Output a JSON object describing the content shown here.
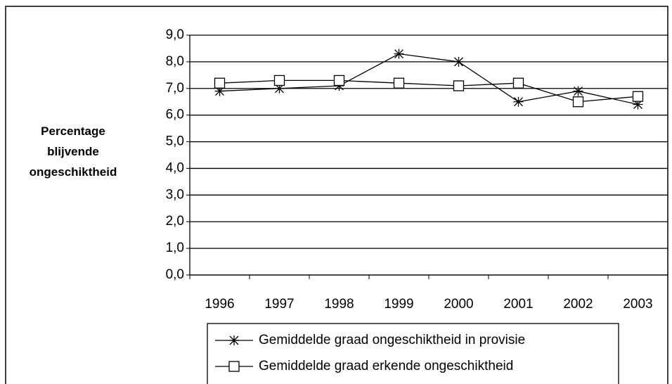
{
  "chart_data": {
    "type": "line",
    "ylabel": "Percentage blijvende ongeschiktheid",
    "categories": [
      "1996",
      "1997",
      "1998",
      "1999",
      "2000",
      "2001",
      "2002",
      "2003"
    ],
    "series": [
      {
        "name": "Gemiddelde graad ongeschiktheid in provisie",
        "color": "#000000",
        "marker": "star",
        "values": [
          6.9,
          7.0,
          7.1,
          8.3,
          8.0,
          6.5,
          6.9,
          6.4
        ]
      },
      {
        "name": "Gemiddelde graad erkende ongeschiktheid",
        "color": "#000000",
        "marker": "square",
        "values": [
          7.2,
          7.3,
          7.3,
          7.2,
          7.1,
          7.2,
          6.5,
          6.7
        ]
      }
    ],
    "ylim": [
      0,
      9
    ],
    "yticks": [
      {
        "value": 0,
        "label": "0,0"
      },
      {
        "value": 1,
        "label": "1,0"
      },
      {
        "value": 2,
        "label": "2,0"
      },
      {
        "value": 3,
        "label": "3,0"
      },
      {
        "value": 4,
        "label": "4,0"
      },
      {
        "value": 5,
        "label": "5,0"
      },
      {
        "value": 6,
        "label": "6,0"
      },
      {
        "value": 7,
        "label": "7,0"
      },
      {
        "value": 8,
        "label": "8,0"
      },
      {
        "value": 9,
        "label": "9,0"
      }
    ],
    "grid": true,
    "legend": "bottom"
  }
}
